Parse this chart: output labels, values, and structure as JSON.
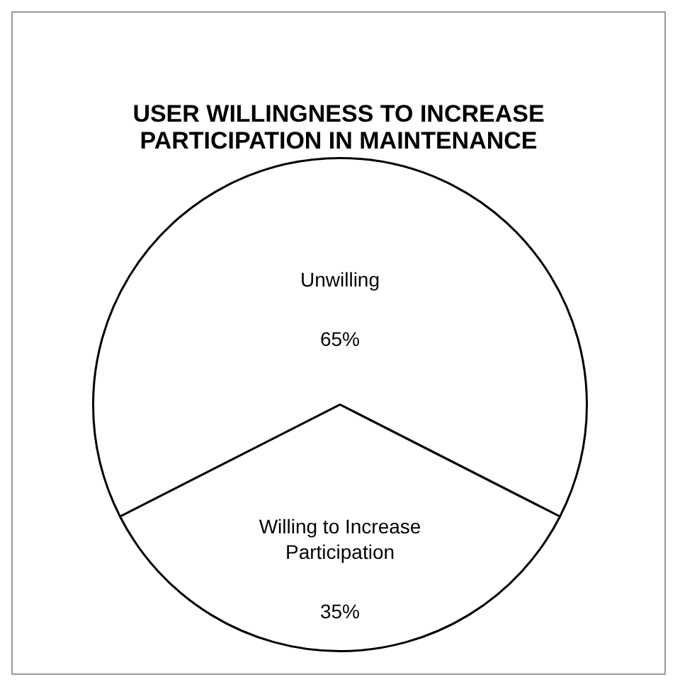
{
  "chart_data": {
    "type": "pie",
    "title": "USER WILLINGNESS TO INCREASE PARTICIPATION IN MAINTENANCE",
    "categories": [
      "Unwilling",
      "Willing to Increase Participation"
    ],
    "values": [
      65,
      35
    ],
    "value_labels": [
      "65%",
      "35%"
    ],
    "colors": [
      "#ffffff",
      "#ffffff"
    ],
    "legend": false
  }
}
